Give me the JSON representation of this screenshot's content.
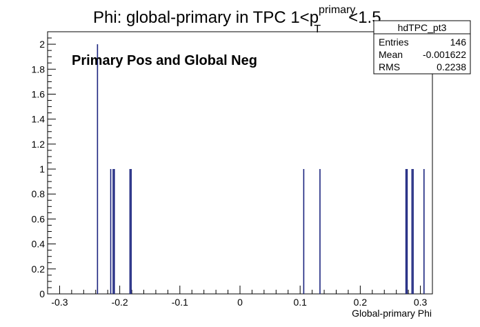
{
  "chart_data": {
    "type": "bar",
    "title_main": "Phi: global-primary in TPC 1<p",
    "title_sup": "primary",
    "title_sub": "T",
    "title_tail": "<1.5",
    "annotation": "Primary Pos and Global Neg",
    "xlabel": "Global-primary Phi",
    "ylabel": "",
    "xlim": [
      -0.32,
      0.32
    ],
    "ylim": [
      0,
      2.1
    ],
    "xticks": [
      -0.3,
      -0.2,
      -0.1,
      0,
      0.1,
      0.2,
      0.3
    ],
    "xtick_labels": [
      "-0.3",
      "-0.2",
      "-0.1",
      "0",
      "0.1",
      "0.2",
      "0.3"
    ],
    "yticks": [
      0,
      0.2,
      0.4,
      0.6,
      0.8,
      1,
      1.2,
      1.4,
      1.6,
      1.8,
      2
    ],
    "ytick_labels": [
      "0",
      "0.2",
      "0.4",
      "0.6",
      "0.8",
      "1",
      "1.2",
      "1.4",
      "1.6",
      "1.8",
      "2"
    ],
    "series": [
      {
        "x": [
          -0.237,
          -0.215,
          -0.211,
          -0.209,
          -0.183,
          -0.181,
          0.106,
          0.133,
          0.276,
          0.278,
          0.286,
          0.288,
          0.306
        ],
        "values": [
          2,
          1,
          1,
          1,
          1,
          1,
          1,
          1,
          1,
          1,
          1,
          1,
          1
        ]
      }
    ],
    "color": "#1a237e",
    "grid": false
  },
  "stats_box": {
    "title": "hdTPC_pt3",
    "rows": [
      {
        "label": "Entries",
        "value": "146"
      },
      {
        "label": "Mean",
        "value": "-0.001622"
      },
      {
        "label": "RMS",
        "value": "0.2238"
      }
    ]
  }
}
